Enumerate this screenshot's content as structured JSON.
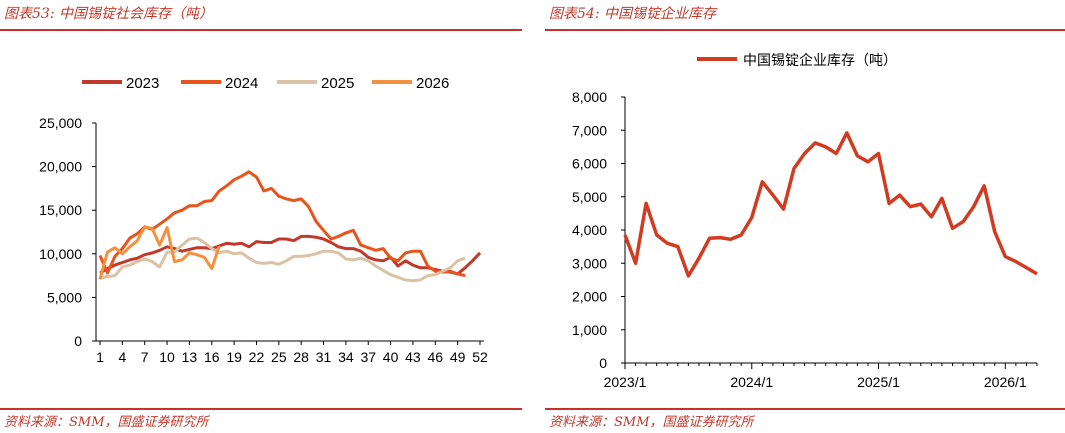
{
  "panels": [
    {
      "title": "图表53:  中国锡锭社会库存（吨）",
      "source": "资料来源：SMM，国盛证券研究所",
      "color_accent": "#c9302c"
    },
    {
      "title": "图表54:  中国锡锭企业库存",
      "source": "资料来源：SMM，国盛证券研究所",
      "color_accent": "#c9302c"
    }
  ],
  "chart_data": [
    {
      "type": "line",
      "title": "",
      "xlabel": "",
      "ylabel": "",
      "ylim": [
        0,
        25000
      ],
      "yticks": [
        0,
        5000,
        10000,
        15000,
        20000,
        25000
      ],
      "ytick_labels": [
        "0",
        "5,000",
        "10,000",
        "15,000",
        "20,000",
        "25,000"
      ],
      "xlim": [
        1,
        52
      ],
      "xticks": [
        1,
        4,
        7,
        10,
        13,
        16,
        19,
        22,
        25,
        28,
        31,
        34,
        37,
        40,
        43,
        46,
        49,
        52
      ],
      "grid": false,
      "legend_position": "top",
      "series": [
        {
          "name": "2023",
          "color": "#c0392b",
          "x": [
            1,
            2,
            3,
            4,
            5,
            6,
            7,
            8,
            9,
            10,
            11,
            12,
            13,
            14,
            15,
            16,
            17,
            18,
            19,
            20,
            21,
            22,
            23,
            24,
            25,
            26,
            27,
            28,
            29,
            30,
            31,
            32,
            33,
            34,
            35,
            36,
            37,
            38,
            39,
            40,
            41,
            42,
            43,
            44,
            45,
            46,
            47,
            48,
            49,
            50,
            51,
            52
          ],
          "values": [
            7800,
            8300,
            8700,
            9000,
            9300,
            9500,
            9900,
            10100,
            10400,
            10800,
            10600,
            10300,
            10500,
            10700,
            10700,
            10600,
            10900,
            11200,
            11100,
            11200,
            10800,
            11400,
            11300,
            11300,
            11700,
            11700,
            11500,
            12000,
            12000,
            11900,
            11700,
            11300,
            10800,
            10600,
            10600,
            10300,
            9600,
            9300,
            9200,
            9600,
            8600,
            9200,
            8700,
            8400,
            8400,
            8200,
            8000,
            7900,
            7700,
            8400,
            9200,
            10100
          ]
        },
        {
          "name": "2024",
          "color": "#e8541c",
          "x": [
            1,
            2,
            3,
            4,
            5,
            6,
            7,
            8,
            9,
            10,
            11,
            12,
            13,
            14,
            15,
            16,
            17,
            18,
            19,
            20,
            21,
            22,
            23,
            24,
            25,
            26,
            27,
            28,
            29,
            30,
            31,
            32,
            33,
            34,
            35,
            36,
            37,
            38,
            39,
            40,
            41,
            42,
            43,
            44,
            45,
            46,
            47,
            48,
            49,
            50
          ],
          "values": [
            9800,
            7800,
            9700,
            10600,
            11800,
            12300,
            13100,
            12800,
            13400,
            14000,
            14700,
            15000,
            15500,
            15500,
            16000,
            16100,
            17200,
            17800,
            18500,
            18900,
            19400,
            18800,
            17200,
            17500,
            16600,
            16300,
            16100,
            16300,
            15400,
            13700,
            12700,
            11700,
            12000,
            12400,
            12700,
            11000,
            10700,
            10400,
            10600,
            9500,
            9200,
            10100,
            10300,
            10300,
            8600,
            8000,
            7900,
            8000,
            7700,
            7500
          ]
        },
        {
          "name": "2025",
          "color": "#d9c2a5",
          "x": [
            1,
            2,
            3,
            4,
            5,
            6,
            7,
            8,
            9,
            10,
            11,
            12,
            13,
            14,
            15,
            16,
            17,
            18,
            19,
            20,
            21,
            22,
            23,
            24,
            25,
            26,
            27,
            28,
            29,
            30,
            31,
            32,
            33,
            34,
            35,
            36,
            37,
            38,
            39,
            40,
            41,
            42,
            43,
            44,
            45,
            46,
            47,
            48,
            49,
            50
          ],
          "values": [
            7200,
            7400,
            7500,
            8500,
            8700,
            9100,
            9400,
            9100,
            8500,
            10200,
            10200,
            11000,
            11700,
            11800,
            11300,
            10600,
            10100,
            10300,
            10000,
            10100,
            9500,
            9000,
            8900,
            9000,
            8800,
            9200,
            9700,
            9700,
            9800,
            10000,
            10300,
            10300,
            10100,
            9400,
            9300,
            9500,
            9200,
            8600,
            8100,
            7600,
            7300,
            7000,
            6900,
            7000,
            7500,
            7600,
            8000,
            8400,
            9200,
            9500
          ]
        },
        {
          "name": "2026",
          "color": "#f3913f",
          "x": [
            1,
            2,
            3,
            4,
            5,
            6,
            7,
            8,
            9,
            10,
            11,
            12,
            13,
            14,
            15,
            16,
            17
          ],
          "values": [
            7100,
            10200,
            10700,
            10000,
            10800,
            11500,
            13100,
            12900,
            11000,
            13000,
            9100,
            9300,
            10100,
            9900,
            9600,
            8300,
            10900
          ]
        }
      ]
    },
    {
      "type": "line",
      "title": "",
      "xlabel": "",
      "ylabel": "",
      "ylim": [
        0,
        8000
      ],
      "yticks": [
        0,
        1000,
        2000,
        3000,
        4000,
        5000,
        6000,
        7000,
        8000
      ],
      "ytick_labels": [
        "0",
        "1,000",
        "2,000",
        "3,000",
        "4,000",
        "5,000",
        "6,000",
        "7,000",
        "8,000"
      ],
      "x_tick_labels": [
        "2023/1",
        "2024/1",
        "2025/1",
        "2026/1"
      ],
      "x_tick_indices": [
        0,
        12,
        24,
        36
      ],
      "grid": false,
      "legend_position": "top",
      "series": [
        {
          "name": "中国锡锭企业库存（吨）",
          "color": "#d13b1f",
          "x": [
            "2023/1",
            "2023/2",
            "2023/3",
            "2023/4",
            "2023/5",
            "2023/6",
            "2023/7",
            "2023/8",
            "2023/9",
            "2023/10",
            "2023/11",
            "2023/12",
            "2024/1",
            "2024/2",
            "2024/3",
            "2024/4",
            "2024/5",
            "2024/6",
            "2024/7",
            "2024/8",
            "2024/9",
            "2024/10",
            "2024/11",
            "2024/12",
            "2025/1",
            "2025/2",
            "2025/3",
            "2025/4",
            "2025/5",
            "2025/6",
            "2025/7",
            "2025/8",
            "2025/9",
            "2025/10",
            "2025/11",
            "2025/12",
            "2026/1",
            "2026/2",
            "2026/3",
            "2026/4"
          ],
          "values": [
            3850,
            3000,
            4800,
            3850,
            3600,
            3500,
            2620,
            3150,
            3750,
            3770,
            3720,
            3850,
            4380,
            5450,
            5050,
            4630,
            5850,
            6300,
            6620,
            6500,
            6300,
            6920,
            6230,
            6050,
            6300,
            4800,
            5050,
            4700,
            4780,
            4400,
            4950,
            4050,
            4250,
            4700,
            5330,
            3950,
            3200,
            3050,
            2870,
            2680
          ]
        }
      ]
    }
  ]
}
